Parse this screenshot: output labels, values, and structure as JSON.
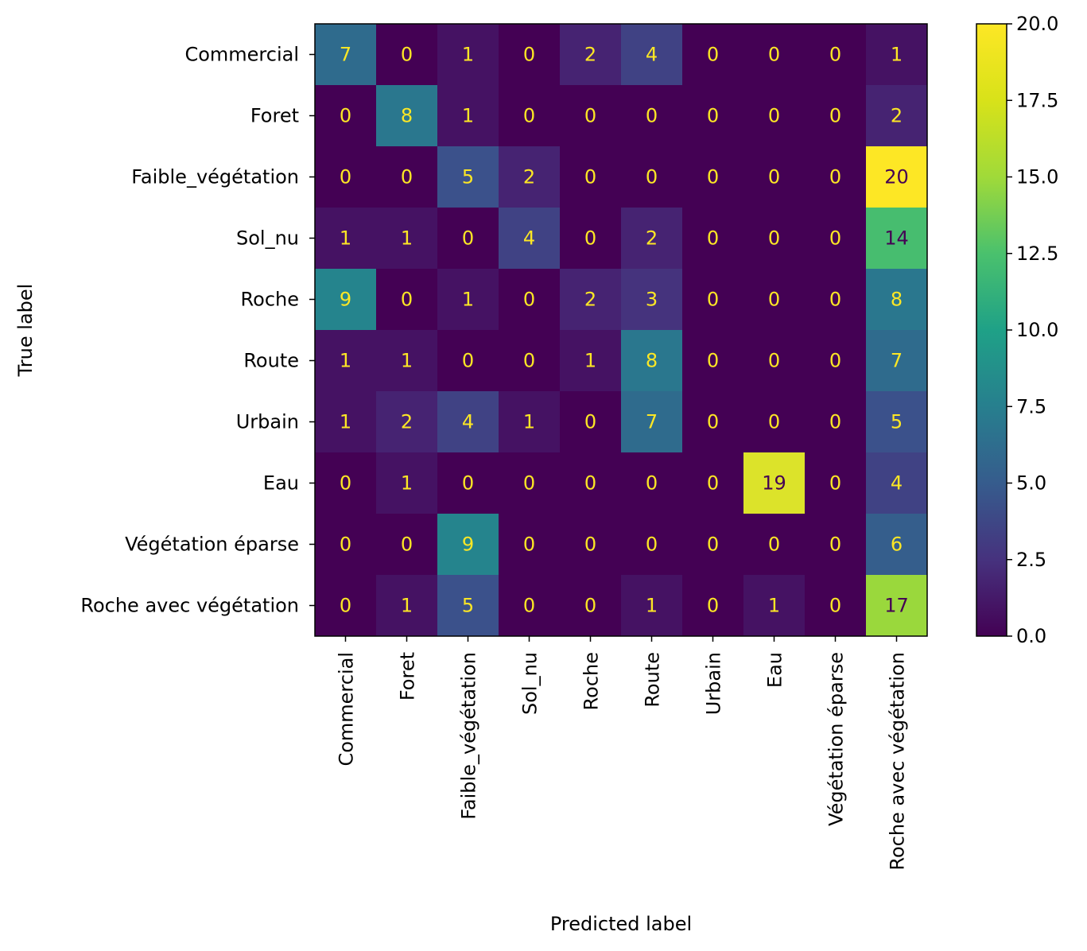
{
  "chart_data": {
    "type": "heatmap",
    "title": "",
    "xlabel": "Predicted label",
    "ylabel": "True label",
    "labels": [
      "Commercial",
      "Foret",
      "Faible_végétation",
      "Sol_nu",
      "Roche",
      "Route",
      "Urbain",
      "Eau",
      "Végétation éparse",
      "Roche avec végétation"
    ],
    "matrix": [
      [
        7,
        0,
        1,
        0,
        2,
        4,
        0,
        0,
        0,
        1
      ],
      [
        0,
        8,
        1,
        0,
        0,
        0,
        0,
        0,
        0,
        2
      ],
      [
        0,
        0,
        5,
        2,
        0,
        0,
        0,
        0,
        0,
        20
      ],
      [
        1,
        1,
        0,
        4,
        0,
        2,
        0,
        0,
        0,
        14
      ],
      [
        9,
        0,
        1,
        0,
        2,
        3,
        0,
        0,
        0,
        8
      ],
      [
        1,
        1,
        0,
        0,
        1,
        8,
        0,
        0,
        0,
        7
      ],
      [
        1,
        2,
        4,
        1,
        0,
        7,
        0,
        0,
        0,
        5
      ],
      [
        0,
        1,
        0,
        0,
        0,
        0,
        0,
        19,
        0,
        4
      ],
      [
        0,
        0,
        9,
        0,
        0,
        0,
        0,
        0,
        0,
        6
      ],
      [
        0,
        1,
        5,
        0,
        0,
        1,
        0,
        1,
        0,
        17
      ]
    ],
    "colorbar": {
      "range": [
        0,
        20
      ],
      "ticks": [
        "0.0",
        "2.5",
        "5.0",
        "7.5",
        "10.0",
        "12.5",
        "15.0",
        "17.5",
        "20.0"
      ]
    },
    "colormap": "viridis",
    "text_color_dark_cells": "#fde725",
    "text_color_light_cells": "#440154"
  }
}
